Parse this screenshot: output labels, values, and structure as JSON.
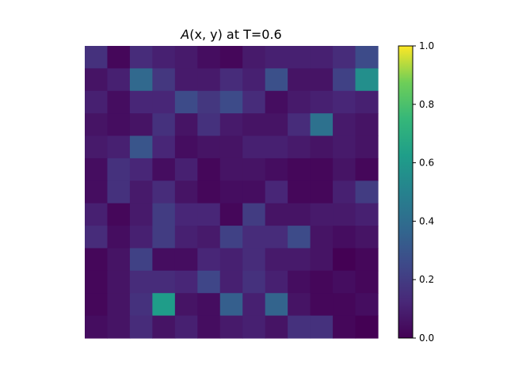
{
  "chart_data": {
    "type": "heatmap",
    "title": "A(x, y) at T=0.6",
    "title_parts": {
      "func": "A",
      "args": "(x, y)",
      "rest": " at T=0.6"
    },
    "colormap": "viridis",
    "vmin": 0.0,
    "vmax": 1.0,
    "colorbar_ticks": [
      "0.0",
      "0.2",
      "0.4",
      "0.6",
      "0.8",
      "1.0"
    ],
    "grid": false,
    "rows": 13,
    "cols": 13,
    "values": [
      [
        0.16,
        0.02,
        0.14,
        0.1,
        0.08,
        0.04,
        0.02,
        0.08,
        0.1,
        0.1,
        0.1,
        0.14,
        0.26
      ],
      [
        0.06,
        0.1,
        0.38,
        0.18,
        0.08,
        0.08,
        0.14,
        0.1,
        0.28,
        0.06,
        0.06,
        0.22,
        0.56
      ],
      [
        0.1,
        0.04,
        0.12,
        0.12,
        0.26,
        0.18,
        0.26,
        0.14,
        0.04,
        0.08,
        0.1,
        0.12,
        0.1
      ],
      [
        0.06,
        0.04,
        0.06,
        0.16,
        0.06,
        0.16,
        0.08,
        0.06,
        0.06,
        0.14,
        0.42,
        0.08,
        0.06
      ],
      [
        0.08,
        0.1,
        0.3,
        0.12,
        0.04,
        0.06,
        0.06,
        0.1,
        0.1,
        0.08,
        0.06,
        0.08,
        0.06
      ],
      [
        0.04,
        0.16,
        0.12,
        0.04,
        0.1,
        0.02,
        0.06,
        0.06,
        0.04,
        0.02,
        0.02,
        0.06,
        0.02
      ],
      [
        0.04,
        0.16,
        0.08,
        0.14,
        0.06,
        0.02,
        0.04,
        0.04,
        0.12,
        0.02,
        0.02,
        0.1,
        0.2
      ],
      [
        0.1,
        0.02,
        0.08,
        0.2,
        0.12,
        0.12,
        0.02,
        0.2,
        0.06,
        0.06,
        0.08,
        0.08,
        0.1
      ],
      [
        0.14,
        0.04,
        0.1,
        0.2,
        0.1,
        0.08,
        0.22,
        0.14,
        0.14,
        0.26,
        0.06,
        0.04,
        0.06
      ],
      [
        0.02,
        0.06,
        0.22,
        0.04,
        0.04,
        0.12,
        0.1,
        0.14,
        0.08,
        0.08,
        0.06,
        0.0,
        0.02
      ],
      [
        0.02,
        0.06,
        0.14,
        0.14,
        0.12,
        0.24,
        0.1,
        0.16,
        0.1,
        0.04,
        0.02,
        0.04,
        0.02
      ],
      [
        0.02,
        0.06,
        0.16,
        0.62,
        0.06,
        0.04,
        0.34,
        0.1,
        0.36,
        0.06,
        0.02,
        0.02,
        0.04
      ],
      [
        0.04,
        0.06,
        0.14,
        0.06,
        0.1,
        0.04,
        0.08,
        0.1,
        0.06,
        0.16,
        0.16,
        0.02,
        0.0
      ]
    ]
  }
}
